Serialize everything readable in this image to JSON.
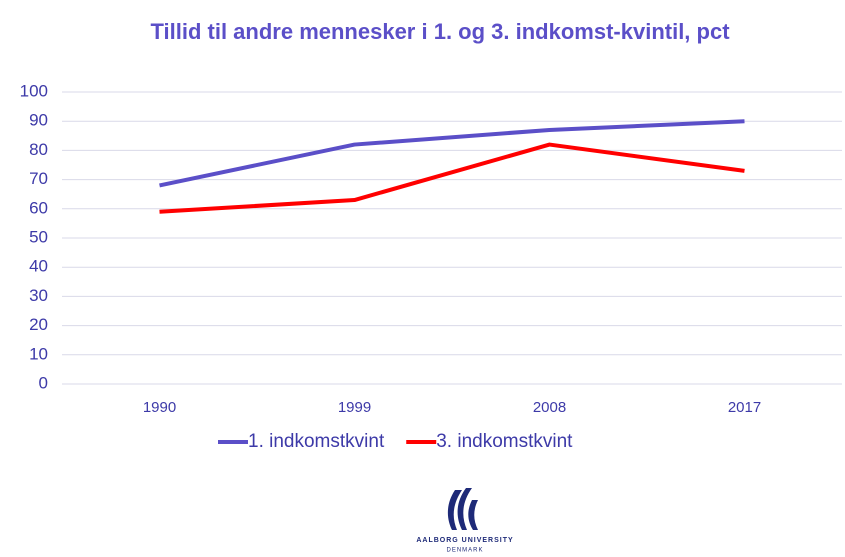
{
  "chart_data": {
    "type": "line",
    "title": "Tillid til andre mennesker i 1. og 3. indkomst-kvintil, pct",
    "categories": [
      "1990",
      "1999",
      "2008",
      "2017"
    ],
    "series": [
      {
        "name": "1. indkomstkvint",
        "color": "#5b4fc8",
        "values": [
          68,
          82,
          87,
          90
        ]
      },
      {
        "name": "3. indkomstkvint",
        "color": "#ff0000",
        "values": [
          59,
          63,
          82,
          73
        ]
      }
    ],
    "ylim": [
      0,
      100
    ],
    "yticks": [
      0,
      10,
      20,
      30,
      40,
      50,
      60,
      70,
      80,
      90,
      100
    ],
    "grid": true,
    "legend": "bottom"
  },
  "logo": {
    "name": "AALBORG UNIVERSITY",
    "country": "DENMARK"
  }
}
